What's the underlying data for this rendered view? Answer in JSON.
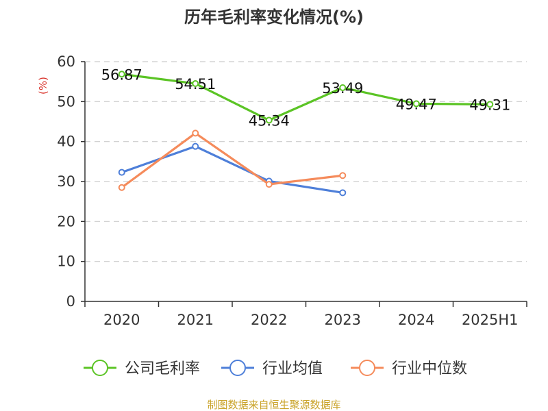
{
  "title": "历年毛利率变化情况(%)",
  "unit_label": "(%)",
  "source": "制图数据来自恒生聚源数据库",
  "colors": {
    "company": "#5bc425",
    "industry_avg": "#4e7fd9",
    "industry_median": "#f58b5b",
    "unit": "#d9332b",
    "source": "#c9a227"
  },
  "chart_data": {
    "type": "line",
    "title": "历年毛利率变化情况(%)",
    "ylabel": "(%)",
    "categories": [
      "2020",
      "2021",
      "2022",
      "2023",
      "2024",
      "2025H1"
    ],
    "ylim": [
      0,
      60
    ],
    "yticks": [
      0,
      10,
      20,
      30,
      40,
      50,
      60
    ],
    "grid": true,
    "legend": "bottom",
    "series": [
      {
        "name": "公司毛利率",
        "color": "#5bc425",
        "labels": true,
        "values": [
          56.87,
          54.51,
          45.34,
          53.49,
          49.47,
          49.31
        ]
      },
      {
        "name": "行业均值",
        "color": "#4e7fd9",
        "labels": false,
        "values": [
          32.3,
          38.8,
          30.1,
          27.2,
          null,
          null
        ]
      },
      {
        "name": "行业中位数",
        "color": "#f58b5b",
        "labels": false,
        "values": [
          28.5,
          42.1,
          29.3,
          31.5,
          null,
          null
        ]
      }
    ]
  }
}
